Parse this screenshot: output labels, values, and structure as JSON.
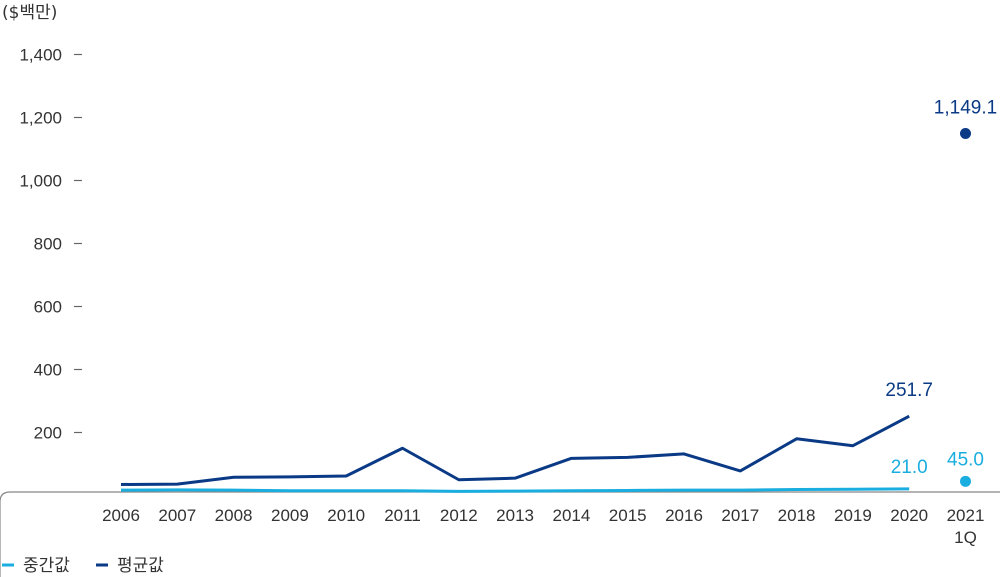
{
  "chart_data": {
    "type": "line",
    "unit_label": "($백만)",
    "categories": [
      "2006",
      "2007",
      "2008",
      "2009",
      "2010",
      "2011",
      "2012",
      "2013",
      "2014",
      "2015",
      "2016",
      "2017",
      "2018",
      "2019",
      "2020",
      "2021\n1Q"
    ],
    "y_ticks": [
      "200",
      "400",
      "600",
      "800",
      "1,000",
      "1,200",
      "1,400"
    ],
    "ylim": [
      0,
      1400
    ],
    "grid": false,
    "legend_position": "bottom-left",
    "series": [
      {
        "name": "중간값",
        "color": "#1aaee0",
        "values": [
          17,
          18,
          17,
          15,
          15,
          15,
          13,
          14,
          15,
          16,
          17,
          17,
          19,
          20,
          21.0,
          45.0
        ]
      },
      {
        "name": "평균값",
        "color": "#0a3a85",
        "values": [
          35,
          36,
          58,
          59,
          62,
          150,
          50,
          55,
          118,
          121,
          132,
          78,
          180,
          158,
          251.7,
          1149.1
        ]
      }
    ],
    "data_labels": [
      {
        "series": 1,
        "index": 14,
        "text": "251.7"
      },
      {
        "series": 1,
        "index": 15,
        "text": "1,149.1"
      },
      {
        "series": 0,
        "index": 14,
        "text": "21.0"
      },
      {
        "series": 0,
        "index": 15,
        "text": "45.0"
      }
    ]
  }
}
